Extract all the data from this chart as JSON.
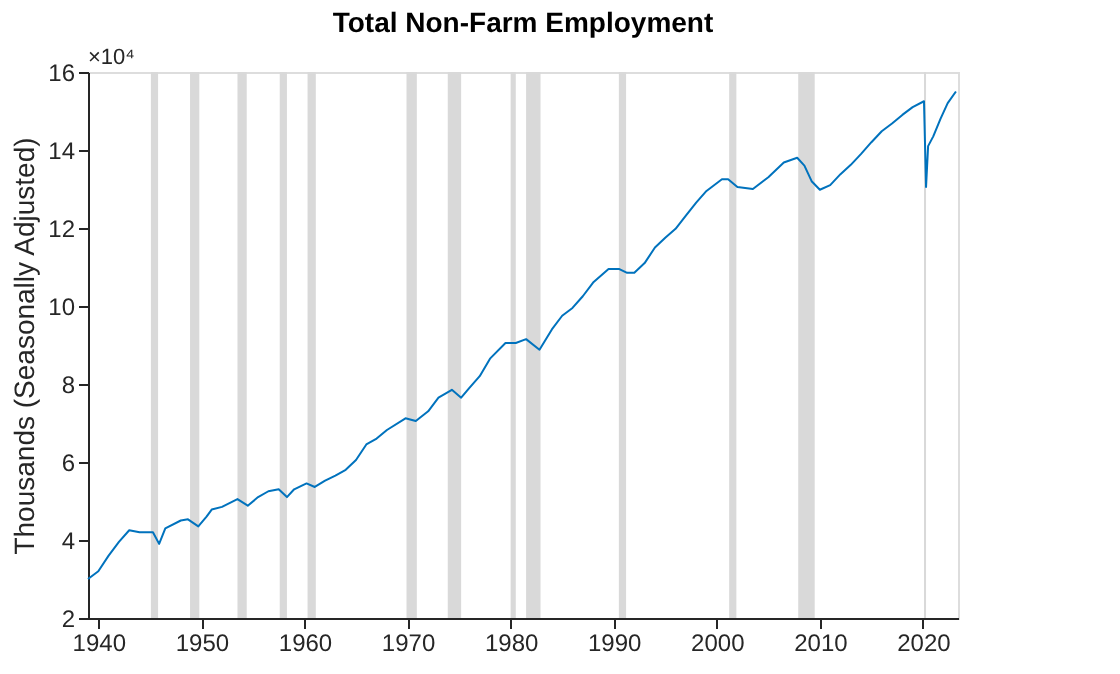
{
  "chart_data": {
    "type": "line",
    "title": "Total Non-Farm Employment",
    "ylabel": "Thousands (Seasonally Adjusted)",
    "annotations": [
      "×10⁴"
    ],
    "x": [
      1939,
      1940,
      1941,
      1942,
      1943,
      1944,
      1945.3,
      1945.9,
      1946.5,
      1948,
      1948.7,
      1949.7,
      1950.5,
      1951,
      1952,
      1953.5,
      1954.5,
      1955.5,
      1956.5,
      1957.5,
      1958.3,
      1959,
      1960.2,
      1961,
      1962,
      1963,
      1964,
      1965,
      1966,
      1967,
      1968,
      1969.8,
      1970.8,
      1972,
      1973,
      1974.3,
      1975.2,
      1976,
      1977,
      1978,
      1979.5,
      1980.5,
      1981.5,
      1982.8,
      1984,
      1985,
      1986,
      1987,
      1988,
      1989.5,
      1990.5,
      1991.3,
      1992,
      1993,
      1994,
      1995,
      1996,
      1997,
      1998,
      1999,
      2000.5,
      2001.1,
      2002,
      2003.5,
      2005,
      2006.5,
      2007.8,
      2008.5,
      2009.2,
      2010,
      2011,
      2012,
      2013,
      2014,
      2015,
      2016,
      2017,
      2018,
      2019,
      2020.1,
      2020.3,
      2020.5,
      2021,
      2021.7,
      2022.4,
      2023.2
    ],
    "series": [
      {
        "color": "#0072bd",
        "values": [
          3.0,
          3.2,
          3.6,
          3.95,
          4.25,
          4.2,
          4.2,
          3.9,
          4.3,
          4.5,
          4.53,
          4.35,
          4.6,
          4.78,
          4.85,
          5.05,
          4.88,
          5.1,
          5.25,
          5.3,
          5.1,
          5.3,
          5.45,
          5.36,
          5.52,
          5.65,
          5.8,
          6.05,
          6.45,
          6.6,
          6.82,
          7.12,
          7.05,
          7.3,
          7.65,
          7.85,
          7.65,
          7.9,
          8.2,
          8.65,
          9.05,
          9.05,
          9.15,
          8.88,
          9.4,
          9.75,
          9.95,
          10.25,
          10.6,
          10.95,
          10.95,
          10.85,
          10.85,
          11.1,
          11.5,
          11.75,
          11.98,
          12.32,
          12.65,
          12.95,
          13.25,
          13.25,
          13.05,
          13.0,
          13.3,
          13.68,
          13.8,
          13.6,
          13.2,
          12.98,
          13.1,
          13.38,
          13.62,
          13.9,
          14.2,
          14.48,
          14.68,
          14.9,
          15.1,
          15.25,
          13.05,
          14.1,
          14.35,
          14.8,
          15.2,
          15.5
        ]
      }
    ],
    "bands": [
      {
        "axis": "x",
        "from": 1945.1,
        "to": 1945.8,
        "color": "#d9d9d9"
      },
      {
        "axis": "x",
        "from": 1948.9,
        "to": 1949.8,
        "color": "#d9d9d9"
      },
      {
        "axis": "x",
        "from": 1953.5,
        "to": 1954.4,
        "color": "#d9d9d9"
      },
      {
        "axis": "x",
        "from": 1957.6,
        "to": 1958.3,
        "color": "#d9d9d9"
      },
      {
        "axis": "x",
        "from": 1960.3,
        "to": 1961.1,
        "color": "#d9d9d9"
      },
      {
        "axis": "x",
        "from": 1969.9,
        "to": 1970.9,
        "color": "#d9d9d9"
      },
      {
        "axis": "x",
        "from": 1973.9,
        "to": 1975.2,
        "color": "#d9d9d9"
      },
      {
        "axis": "x",
        "from": 1980.0,
        "to": 1980.5,
        "color": "#d9d9d9"
      },
      {
        "axis": "x",
        "from": 1981.5,
        "to": 1982.9,
        "color": "#d9d9d9"
      },
      {
        "axis": "x",
        "from": 1990.5,
        "to": 1991.2,
        "color": "#d9d9d9"
      },
      {
        "axis": "x",
        "from": 2001.2,
        "to": 2001.9,
        "color": "#d9d9d9"
      },
      {
        "axis": "x",
        "from": 2007.9,
        "to": 2009.5,
        "color": "#d9d9d9"
      },
      {
        "axis": "x",
        "from": 2020.1,
        "to": 2020.3,
        "color": "#d9d9d9"
      }
    ],
    "xlim": [
      1939,
      2023.4
    ],
    "xticks": [
      1940,
      1950,
      1960,
      1970,
      1980,
      1990,
      2000,
      2010,
      2020
    ],
    "ylim": [
      2,
      16
    ],
    "yticks": [
      2,
      4,
      6,
      8,
      10,
      12,
      14,
      16
    ],
    "marker": "none",
    "line_style": "solid"
  }
}
